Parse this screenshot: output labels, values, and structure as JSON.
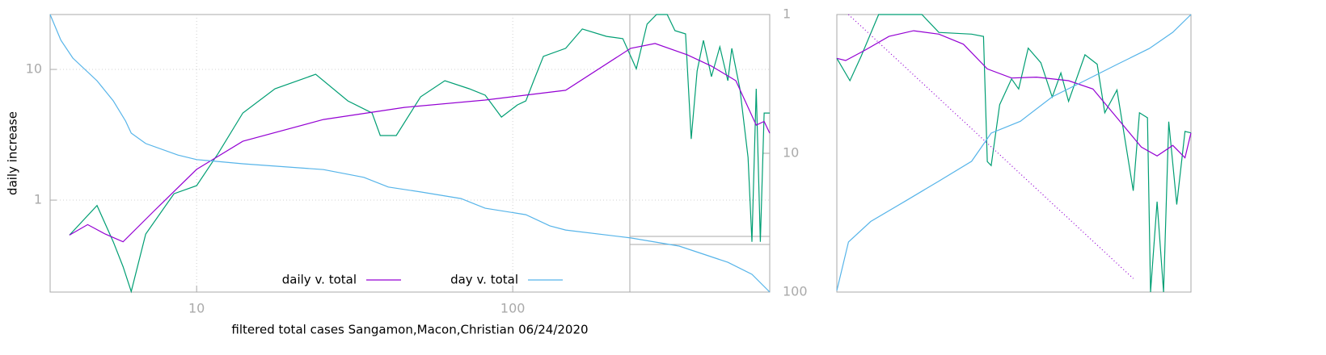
{
  "chart_data": [
    {
      "type": "line",
      "xlabel": "filtered total cases Sangamon,Macon,Christian 06/24/2020",
      "ylabel": "daily increase",
      "xlog": true,
      "ylog": true,
      "y2log": true,
      "y2reverse": true,
      "grid": true,
      "legend": "bottom center",
      "xlim": [
        3.44,
        650
      ],
      "ylim": [
        0.198,
        26.3
      ],
      "y2lim": [
        1,
        100
      ],
      "xticks": [
        10,
        100
      ],
      "yticks": [
        1,
        10
      ],
      "y2ticks": [
        1,
        10,
        100
      ],
      "series": [
        {
          "color": "#009e73",
          "x": [
            3.96,
            4.84,
            5.45,
            5.85,
            6.21,
            6.9,
            8.48,
            10,
            11.7,
            14.0,
            17.7,
            23.8,
            30.1,
            35.9,
            38.1,
            42.8,
            51.1,
            61.0,
            72.8,
            81.8,
            92.1,
            103.5,
            110,
            116.5,
            125,
            147,
            166,
            198,
            223,
            246,
            266,
            285,
            308,
            326,
            352,
            367,
            383,
            401,
            425,
            452,
            479,
            493,
            523,
            555,
            571,
            589,
            607,
            624,
            650
          ],
          "values": [
            0.54,
            0.91,
            0.48,
            0.31,
            0.2,
            0.55,
            1.12,
            1.29,
            2.28,
            4.64,
            7.11,
            9.18,
            5.74,
            4.64,
            3.12,
            3.12,
            6.17,
            8.2,
            7.11,
            6.35,
            4.32,
            5.35,
            5.74,
            8.2,
            12.6,
            14.5,
            20.4,
            17.9,
            17.2,
            10.1,
            22.2,
            26.3,
            26.3,
            19.8,
            18.7,
            2.94,
            9.72,
            16.7,
            8.8,
            14.9,
            8.2,
            14.5,
            7.11,
            2.12,
            0.48,
            7.11,
            0.48,
            4.64,
            4.64
          ]
        },
        {
          "name": "daily v. total",
          "color": "#9400d3",
          "x": [
            3.96,
            4.52,
            5.14,
            5.85,
            7.31,
            10,
            14.0,
            25.2,
            45.4,
            81.8,
            147,
            236,
            282,
            357,
            425,
            508,
            589,
            624,
            650
          ],
          "values": [
            0.54,
            0.65,
            0.55,
            0.48,
            0.82,
            1.72,
            2.82,
            4.14,
            5.12,
            5.83,
            6.92,
            14.5,
            15.8,
            12.9,
            10.6,
            8.2,
            3.75,
            4.0,
            3.25
          ]
        },
        {
          "name": "day v. total",
          "color": "#56b4e9",
          "axis": "y2",
          "x": [
            3.44,
            3.72,
            4.06,
            4.84,
            5.45,
            5.96,
            6.21,
            6.9,
            8.73,
            10,
            14.0,
            25.2,
            33.8,
            40.4,
            51.1,
            68.6,
            81.8,
            110,
            131,
            147,
            236,
            336,
            401,
            479,
            571,
            650
          ],
          "values": [
            1,
            1.53,
            2.06,
            3.0,
            4.19,
            5.85,
            7.16,
            8.51,
            10.3,
            11.1,
            11.9,
            13.1,
            14.9,
            17.5,
            19.0,
            21.2,
            24.9,
            27.7,
            33.3,
            35.7,
            40.7,
            46.6,
            53.3,
            61.0,
            74.5,
            100
          ]
        }
      ]
    },
    {
      "type": "line",
      "xlog": true,
      "ylog": true,
      "y2log": true,
      "xlim": [
        236,
        650
      ],
      "ylim": [
        1.5,
        22
      ],
      "y2lim": [
        40,
        100
      ],
      "series": [
        {
          "color": "#009e73",
          "x": [
            236,
            245,
            253,
            266,
            301,
            316,
            347,
            359,
            363,
            367,
            376,
            389,
            397,
            408,
            423,
            437,
            448,
            458,
            480,
            497,
            508,
            526,
            551,
            561,
            574,
            579,
            590,
            601,
            610,
            624,
            639,
            650
          ],
          "values": [
            14.4,
            11.6,
            14.7,
            22,
            22,
            18.5,
            18.2,
            17.8,
            5.3,
            5.1,
            9.2,
            11.8,
            10.7,
            15.9,
            13.8,
            9.9,
            12.5,
            9.5,
            14.9,
            13.6,
            8.5,
            10.6,
            4.0,
            8.5,
            8.1,
            1.5,
            3.6,
            1.5,
            7.8,
            3.5,
            7.1,
            7.0
          ]
        },
        {
          "color": "#9400d3",
          "x": [
            236,
            242,
            256,
            274,
            294,
            316,
            339,
            363,
            389,
            418,
            458,
            491,
            526,
            564,
            590,
            617,
            639,
            650
          ],
          "values": [
            14.4,
            14.1,
            15.6,
            17.8,
            18.8,
            18.2,
            16.5,
            13.0,
            11.9,
            12.0,
            11.6,
            10.7,
            8.1,
            6.1,
            5.6,
            6.2,
            5.5,
            7.0
          ]
        },
        {
          "color": "#9400d3",
          "dash": true,
          "x": [
            244,
            551
          ],
          "values": [
            22,
            1.71
          ]
        },
        {
          "color": "#56b4e9",
          "axis": "y2",
          "x": [
            236,
            244,
            260,
            287,
            316,
            347,
            367,
            399,
            437,
            480,
            526,
            577,
            617,
            650
          ],
          "values": [
            40.2,
            47.2,
            50.5,
            54.0,
            57.7,
            61.6,
            67.6,
            70.3,
            76.2,
            80.4,
            84.8,
            89.4,
            94.3,
            100
          ]
        }
      ]
    }
  ]
}
